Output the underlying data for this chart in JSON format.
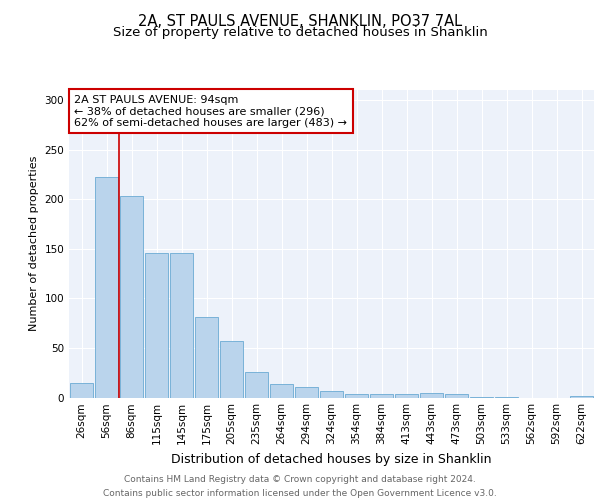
{
  "title1": "2A, ST PAULS AVENUE, SHANKLIN, PO37 7AL",
  "title2": "Size of property relative to detached houses in Shanklin",
  "xlabel": "Distribution of detached houses by size in Shanklin",
  "ylabel": "Number of detached properties",
  "categories": [
    "26sqm",
    "56sqm",
    "86sqm",
    "115sqm",
    "145sqm",
    "175sqm",
    "205sqm",
    "235sqm",
    "264sqm",
    "294sqm",
    "324sqm",
    "354sqm",
    "384sqm",
    "413sqm",
    "443sqm",
    "473sqm",
    "503sqm",
    "533sqm",
    "562sqm",
    "592sqm",
    "622sqm"
  ],
  "values": [
    15,
    222,
    203,
    146,
    146,
    81,
    57,
    26,
    14,
    11,
    7,
    4,
    4,
    4,
    5,
    4,
    1,
    1,
    0,
    0,
    2
  ],
  "bar_color": "#bad4ec",
  "bar_edge_color": "#6aaad4",
  "vline_x": 2.0,
  "vline_color": "#cc0000",
  "annotation_text": "2A ST PAULS AVENUE: 94sqm\n← 38% of detached houses are smaller (296)\n62% of semi-detached houses are larger (483) →",
  "annotation_box_color": "#ffffff",
  "annotation_box_edge": "#cc0000",
  "ylim": [
    0,
    310
  ],
  "yticks": [
    0,
    50,
    100,
    150,
    200,
    250,
    300
  ],
  "footnote": "Contains HM Land Registry data © Crown copyright and database right 2024.\nContains public sector information licensed under the Open Government Licence v3.0.",
  "background_color": "#edf2fa",
  "title1_fontsize": 10.5,
  "title2_fontsize": 9.5,
  "xlabel_fontsize": 9,
  "ylabel_fontsize": 8,
  "tick_fontsize": 7.5,
  "footnote_fontsize": 6.5,
  "annot_fontsize": 8
}
